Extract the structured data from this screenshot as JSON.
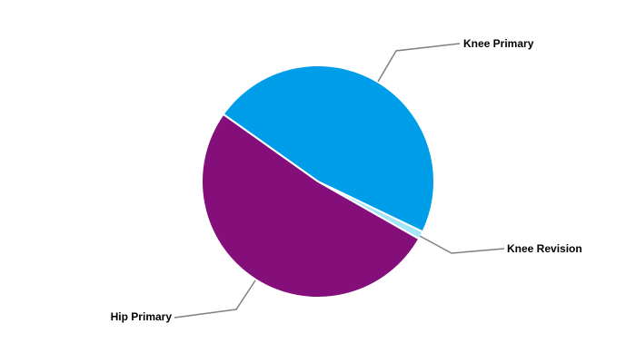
{
  "chart_data": {
    "type": "pie",
    "title": "",
    "slices": [
      {
        "label": "Knee Primary",
        "value": 47.3,
        "color": "#009ee9"
      },
      {
        "label": "Knee Revision",
        "value": 1.1,
        "color": "#a6e4f8"
      },
      {
        "label": "Hip Primary",
        "value": 51.6,
        "color": "#850f7a"
      }
    ],
    "legend": "none",
    "labels": "outside-with-leader-lines"
  }
}
